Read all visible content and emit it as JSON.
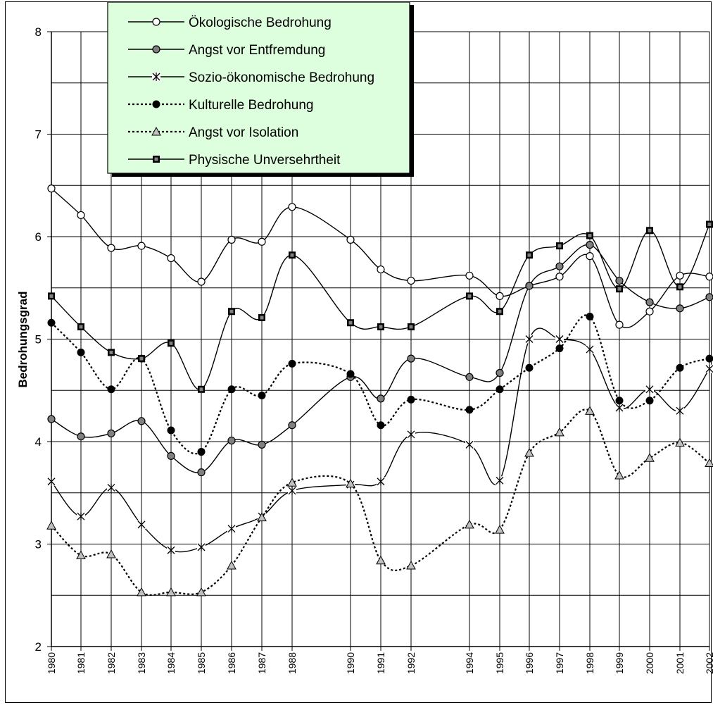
{
  "chart_data": {
    "type": "line",
    "title": "",
    "xlabel": "",
    "ylabel": "Bedrohungsgrad",
    "ylim": [
      2,
      8
    ],
    "yticks": [
      "2",
      "3",
      "4",
      "5",
      "6",
      "7",
      "8"
    ],
    "grid": true,
    "legend_position": "top-left",
    "x": [
      "1980",
      "1981",
      "1982",
      "1983",
      "1984",
      "1985",
      "1986",
      "1987",
      "1988",
      "1990",
      "1991",
      "1992",
      "1994",
      "1995",
      "1996",
      "1997",
      "1998",
      "1999",
      "2000",
      "2001",
      "2002"
    ],
    "x_tick_labels": [
      "1980",
      "1981",
      "1982",
      "1983",
      "1984",
      "1985",
      "1986",
      "1987",
      "1988",
      "1990",
      "1991",
      "1992",
      "1994",
      "1995",
      "1996",
      "1997",
      "1998",
      "1999",
      "2000",
      "2001",
      "2002"
    ],
    "series": [
      {
        "name": "Ökologische Bedrohung",
        "style": "solid",
        "marker": "circle-open",
        "values": [
          6.47,
          6.21,
          5.89,
          5.91,
          5.79,
          5.56,
          5.97,
          5.95,
          6.29,
          5.97,
          5.68,
          5.57,
          5.62,
          5.42,
          5.52,
          5.61,
          5.81,
          5.14,
          5.27,
          5.62,
          5.61
        ]
      },
      {
        "name": "Angst vor Entfremdung",
        "style": "solid",
        "marker": "circle-gray",
        "values": [
          4.22,
          4.05,
          4.08,
          4.2,
          3.86,
          3.7,
          4.01,
          3.97,
          4.16,
          4.63,
          4.42,
          4.81,
          4.63,
          4.67,
          5.52,
          5.71,
          5.92,
          5.57,
          5.36,
          5.3,
          5.41
        ]
      },
      {
        "name": "Sozio-ökonomische Bedrohung",
        "style": "solid",
        "marker": "asterisk",
        "values": [
          3.61,
          3.27,
          3.55,
          3.19,
          2.94,
          2.97,
          3.15,
          3.27,
          3.52,
          3.58,
          3.61,
          4.07,
          3.97,
          3.62,
          5.0,
          5.0,
          4.9,
          4.33,
          4.51,
          4.3,
          4.71
        ]
      },
      {
        "name": "Kulturelle Bedrohung",
        "style": "dotted",
        "marker": "circle-black",
        "values": [
          5.16,
          4.87,
          4.51,
          4.81,
          4.11,
          3.9,
          4.51,
          4.45,
          4.76,
          4.66,
          4.16,
          4.41,
          4.31,
          4.51,
          4.72,
          4.91,
          5.22,
          4.4,
          4.4,
          4.72,
          4.81
        ]
      },
      {
        "name": "Angst vor Isolation",
        "style": "dotted",
        "marker": "triangle-gray",
        "values": [
          3.18,
          2.89,
          2.9,
          2.53,
          2.53,
          2.53,
          2.79,
          3.26,
          3.6,
          3.59,
          2.84,
          2.79,
          3.19,
          3.14,
          3.89,
          4.09,
          4.3,
          3.67,
          3.84,
          3.99,
          3.79
        ]
      },
      {
        "name": "Physische Unversehrtheit",
        "style": "solid",
        "marker": "square",
        "values": [
          5.42,
          5.12,
          4.87,
          4.81,
          4.96,
          4.51,
          5.27,
          5.21,
          5.82,
          5.16,
          5.12,
          5.12,
          5.42,
          5.27,
          5.82,
          5.91,
          6.01,
          5.49,
          6.06,
          5.51,
          6.12
        ]
      }
    ]
  },
  "colors": {
    "legend_bg": "#ddffdd",
    "grid": "#000000",
    "gray_marker": "#808080",
    "triangle_fill": "#c0c0c0"
  }
}
